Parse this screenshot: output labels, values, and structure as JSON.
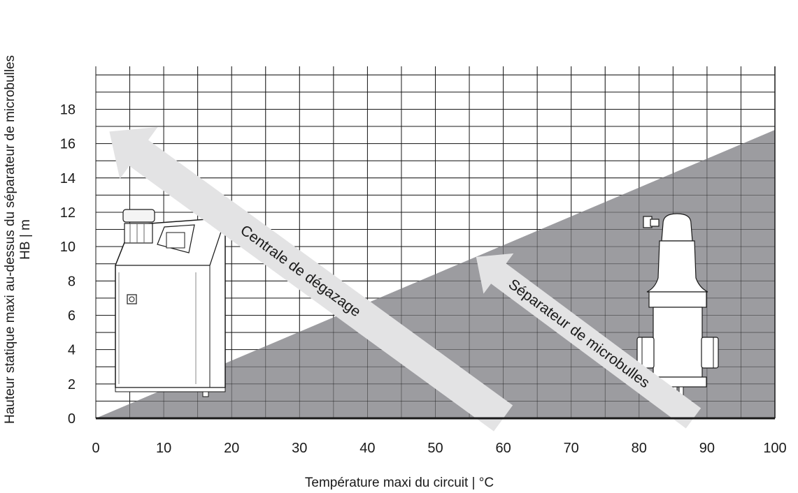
{
  "chart_data": {
    "type": "area",
    "title": "",
    "xlabel": "Température maxi du circuit | °C",
    "ylabel_line1": "Hauteur statique maxi au-dessus du séparateur de microbulles",
    "ylabel_line2": "HB | m",
    "xlim": [
      0,
      100
    ],
    "ylim": [
      0,
      20.5
    ],
    "x_ticks": [
      0,
      10,
      20,
      30,
      40,
      50,
      60,
      70,
      80,
      90,
      100
    ],
    "y_ticks": [
      0,
      2,
      4,
      6,
      8,
      10,
      12,
      14,
      16,
      18
    ],
    "grid": true,
    "series": [
      {
        "name": "Séparateur de microbulles",
        "x": [
          0,
          100
        ],
        "y": [
          0,
          16.8
        ],
        "fill": "#9c9ca0"
      }
    ],
    "annotations": [
      {
        "id": "degassing",
        "text": "Centrale de dégazage",
        "from": [
          60,
          0
        ],
        "to": [
          2,
          16.7
        ]
      },
      {
        "id": "separator",
        "text": "Séparateur de microbulles",
        "from": [
          88,
          0
        ],
        "to": [
          56,
          9.4
        ]
      }
    ],
    "colors": {
      "region": "#9c9ca0",
      "arrow": "#e3e3e4",
      "line": "#1a1a1a"
    }
  }
}
